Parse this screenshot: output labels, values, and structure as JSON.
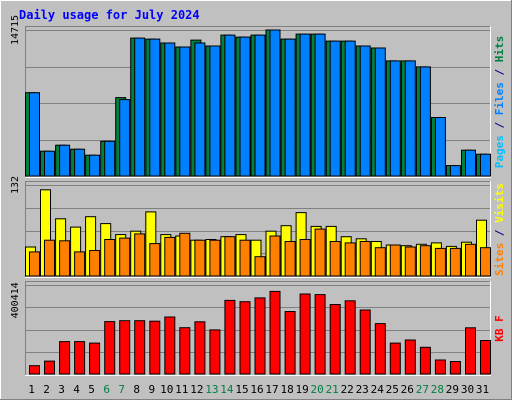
{
  "chart_data": {
    "type": "bar",
    "title": "Daily usage for July 2024",
    "categories": [
      "1",
      "2",
      "3",
      "4",
      "5",
      "6",
      "7",
      "8",
      "9",
      "10",
      "11",
      "12",
      "13",
      "14",
      "15",
      "16",
      "17",
      "18",
      "19",
      "20",
      "21",
      "22",
      "23",
      "24",
      "25",
      "26",
      "27",
      "28",
      "29",
      "30",
      "31"
    ],
    "weekend_days": [
      "6",
      "7",
      "13",
      "14",
      "20",
      "21",
      "27",
      "28"
    ],
    "panels": [
      {
        "id": "hits",
        "ytick": "14715",
        "ylim": [
          0,
          14715
        ],
        "axis_label": [
          {
            "text": "Pages",
            "color": "#00c0ff"
          },
          {
            "text": " / ",
            "color": "#000080"
          },
          {
            "text": "Files",
            "color": "#0080ff"
          },
          {
            "text": " / ",
            "color": "#000080"
          },
          {
            "text": "Hits",
            "color": "#008040"
          }
        ],
        "series": [
          {
            "name": "Hits",
            "color": "#008040",
            "values": [
              8400,
              2500,
              3100,
              2700,
              2100,
              3500,
              7900,
              13900,
              13800,
              13400,
              13000,
              13700,
              13100,
              14200,
              14000,
              14200,
              14715,
              13800,
              14300,
              14300,
              13600,
              13600,
              13100,
              12900,
              11600,
              11600,
              11000,
              5900,
              1050,
              2600,
              2200
            ]
          },
          {
            "name": "Files",
            "color": "#0080ff",
            "values": [
              8400,
              2500,
              3100,
              2700,
              2100,
              3500,
              7700,
              13900,
              13800,
              13400,
              13000,
              13400,
              13100,
              14200,
              14000,
              14200,
              14715,
              13800,
              14300,
              14300,
              13600,
              13600,
              13100,
              12900,
              11600,
              11600,
              11000,
              5900,
              1050,
              2600,
              2200
            ]
          },
          {
            "name": "Pages",
            "color": "#00c0ff",
            "values": []
          }
        ]
      },
      {
        "id": "visits",
        "ytick": "132",
        "ylim": [
          0,
          132
        ],
        "axis_label": [
          {
            "text": "Sites",
            "color": "#ff8000"
          },
          {
            "text": " / ",
            "color": "#000080"
          },
          {
            "text": "Visits",
            "color": "#ffff00"
          }
        ],
        "series": [
          {
            "name": "Visits",
            "color": "#ffff00",
            "values": [
              42,
              125,
              83,
              71,
              86,
              76,
              60,
              65,
              93,
              60,
              58,
              52,
              53,
              57,
              60,
              52,
              65,
              73,
              92,
              72,
              72,
              57,
              54,
              50,
              45,
              44,
              46,
              48,
              43,
              49,
              81
            ]
          },
          {
            "name": "Sites",
            "color": "#ff8000",
            "values": [
              35,
              52,
              51,
              35,
              37,
              53,
              55,
              61,
              47,
              56,
              62,
              52,
              52,
              57,
              52,
              28,
              58,
              50,
              53,
              68,
              50,
              48,
              50,
              41,
              45,
              42,
              44,
              40,
              40,
              46,
              41
            ]
          }
        ]
      },
      {
        "id": "kbytes",
        "ytick": "400414",
        "ylim": [
          0,
          484000
        ],
        "axis_label": [
          {
            "text": "KB F",
            "color": "#ff0000"
          }
        ],
        "series": [
          {
            "name": "KB F",
            "color": "#ff0000",
            "values": [
              45000,
              70000,
              176000,
              176000,
              168000,
              285000,
              290000,
              290000,
              287000,
              310000,
              252000,
              284000,
              240000,
              400414,
              393000,
              414000,
              449000,
              340000,
              435000,
              432000,
              378000,
              398000,
              348000,
              274000,
              168000,
              185000,
              145000,
              76000,
              68000,
              251000,
              182000
            ]
          }
        ]
      }
    ]
  }
}
